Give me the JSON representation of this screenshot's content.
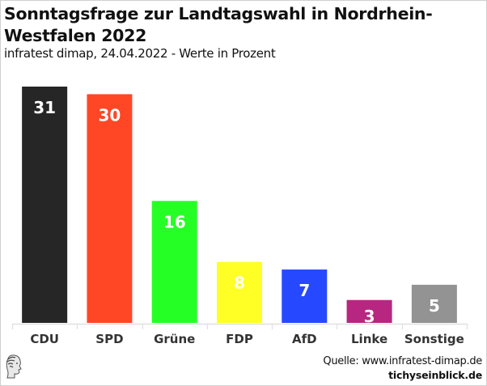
{
  "chart_data": {
    "type": "bar",
    "title": "Sonntagsfrage zur Landtagswahl in Nordrhein-Westfalen 2022",
    "subtitle": "infratest dimap, 24.04.2022 - Werte in Prozent",
    "categories": [
      "CDU",
      "SPD",
      "Grüne",
      "FDP",
      "AfD",
      "Linke",
      "Sonstige"
    ],
    "values": [
      31,
      30,
      16,
      8,
      7,
      3,
      5
    ],
    "data_labels": [
      "31",
      "30",
      "16",
      "8",
      "7",
      "3",
      "5"
    ],
    "colors": [
      "#262626",
      "#ff4726",
      "#26ff26",
      "#ffff26",
      "#2649ff",
      "#b72680",
      "#939393"
    ],
    "xlabel": "",
    "ylabel": "",
    "ylim": [
      0,
      31
    ],
    "grid": false,
    "legend": "none"
  },
  "footer": {
    "source": "Quelle: www.infratest-dimap.de",
    "brand": "tichyseinblick.de",
    "logo_icon": "classical-head-logo"
  }
}
